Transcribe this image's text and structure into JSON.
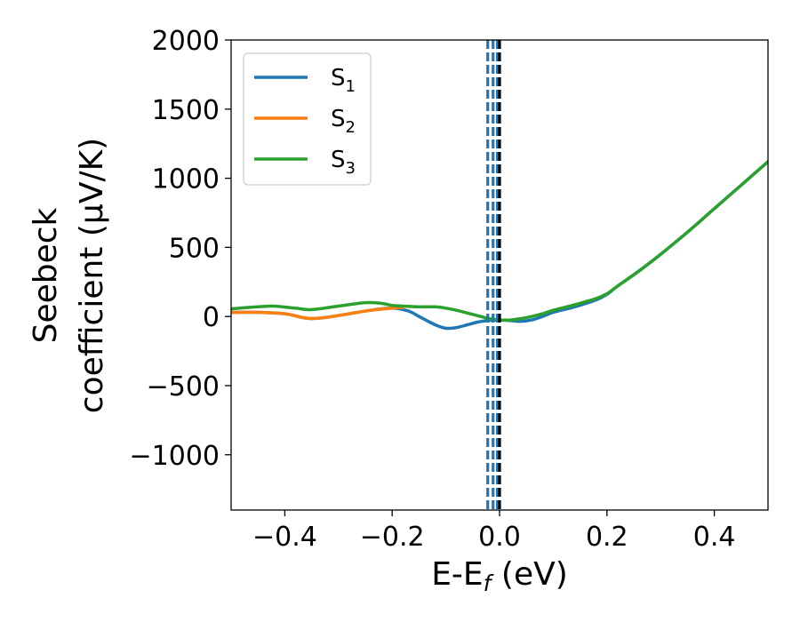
{
  "chart_data": {
    "type": "line",
    "xlabel": {
      "main": "E-E",
      "sub": "f",
      "tail": " (eV)"
    },
    "ylabel": {
      "line1": "Seebeck",
      "line2": "coefficient  (μV/K)"
    },
    "xlim": [
      -0.5,
      0.5
    ],
    "ylim": [
      -1400,
      2000
    ],
    "x_ticks": [
      -0.4,
      -0.2,
      0.0,
      0.2,
      0.4
    ],
    "x_tick_labels": [
      "−0.4",
      "−0.2",
      "0.0",
      "0.2",
      "0.4"
    ],
    "y_ticks": [
      -1000,
      -500,
      0,
      500,
      1000,
      1500,
      2000
    ],
    "y_tick_labels": [
      "−1000",
      "−500",
      "0",
      "500",
      "1000",
      "1500",
      "2000"
    ],
    "grid": false,
    "legend_position": "top-left",
    "vlines": [
      {
        "x": -0.022,
        "style": "dashed",
        "color": "#1f77b4"
      },
      {
        "x": -0.012,
        "style": "dashed",
        "color": "#1f77b4"
      },
      {
        "x": -0.004,
        "style": "dashed",
        "color": "#1f77b4"
      },
      {
        "x": 0.0,
        "style": "dashed",
        "color": "#000000"
      }
    ],
    "series": [
      {
        "name": "S",
        "sub": "1",
        "color": "#1f77b4",
        "x": [
          -0.5,
          -0.45,
          -0.4,
          -0.37,
          -0.35,
          -0.32,
          -0.28,
          -0.24,
          -0.2,
          -0.17,
          -0.15,
          -0.12,
          -0.1,
          -0.08,
          -0.06,
          -0.04,
          -0.02,
          0.0,
          0.02,
          0.04,
          0.06,
          0.08,
          0.1,
          0.14,
          0.18,
          0.2,
          0.22,
          0.26,
          0.3,
          0.35,
          0.4,
          0.45,
          0.5
        ],
        "y": [
          30,
          30,
          20,
          -5,
          -15,
          -5,
          20,
          45,
          60,
          40,
          0,
          -60,
          -85,
          -80,
          -60,
          -40,
          -30,
          -25,
          -30,
          -35,
          -25,
          0,
          30,
          70,
          120,
          160,
          220,
          330,
          450,
          610,
          780,
          950,
          1120
        ]
      },
      {
        "name": "S",
        "sub": "2",
        "color": "#ff7f0e",
        "x": [
          -0.5,
          -0.45,
          -0.4,
          -0.37,
          -0.35,
          -0.32,
          -0.28,
          -0.24,
          -0.2,
          -0.18
        ],
        "y": [
          30,
          30,
          20,
          -5,
          -15,
          -5,
          20,
          45,
          60,
          65
        ]
      },
      {
        "name": "S",
        "sub": "3",
        "color": "#2ca02c",
        "x": [
          -0.5,
          -0.45,
          -0.42,
          -0.38,
          -0.35,
          -0.3,
          -0.25,
          -0.22,
          -0.2,
          -0.18,
          -0.15,
          -0.12,
          -0.1,
          -0.08,
          -0.06,
          -0.04,
          -0.02,
          0.0,
          0.02,
          0.04,
          0.06,
          0.08,
          0.1,
          0.14,
          0.18,
          0.2,
          0.22,
          0.26,
          0.3,
          0.35,
          0.4,
          0.45,
          0.5
        ],
        "y": [
          55,
          70,
          75,
          60,
          50,
          75,
          100,
          95,
          80,
          75,
          70,
          70,
          60,
          45,
          25,
          5,
          -15,
          -25,
          -25,
          -15,
          0,
          20,
          45,
          85,
          130,
          165,
          220,
          330,
          450,
          610,
          780,
          950,
          1120
        ]
      }
    ]
  }
}
